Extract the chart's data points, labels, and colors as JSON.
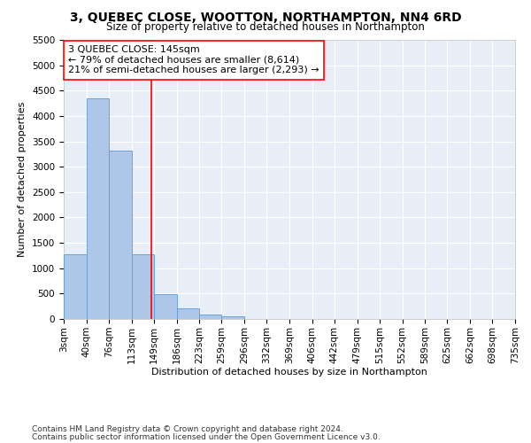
{
  "title": "3, QUEBEC CLOSE, WOOTTON, NORTHAMPTON, NN4 6RD",
  "subtitle": "Size of property relative to detached houses in Northampton",
  "xlabel": "Distribution of detached houses by size in Northampton",
  "ylabel": "Number of detached properties",
  "footnote1": "Contains HM Land Registry data © Crown copyright and database right 2024.",
  "footnote2": "Contains public sector information licensed under the Open Government Licence v3.0.",
  "bar_color": "#aec6e8",
  "bar_edge_color": "#5b9bd5",
  "background_color": "#e8eef8",
  "annotation_text": "3 QUEBEC CLOSE: 145sqm\n← 79% of detached houses are smaller (8,614)\n21% of semi-detached houses are larger (2,293) →",
  "property_line_x": 145,
  "property_line_color": "red",
  "bin_edges": [
    3,
    40,
    76,
    113,
    149,
    186,
    223,
    259,
    296,
    332,
    369,
    406,
    442,
    479,
    515,
    552,
    589,
    625,
    662,
    698,
    735
  ],
  "bar_heights": [
    1270,
    4350,
    3310,
    1270,
    490,
    210,
    90,
    60,
    0,
    0,
    0,
    0,
    0,
    0,
    0,
    0,
    0,
    0,
    0,
    0
  ],
  "ylim": [
    0,
    5500
  ],
  "yticks": [
    0,
    500,
    1000,
    1500,
    2000,
    2500,
    3000,
    3500,
    4000,
    4500,
    5000,
    5500
  ],
  "title_fontsize": 10,
  "subtitle_fontsize": 8.5,
  "xlabel_fontsize": 8,
  "ylabel_fontsize": 8,
  "tick_fontsize": 7.5,
  "annotation_fontsize": 8,
  "footnote_fontsize": 6.5
}
